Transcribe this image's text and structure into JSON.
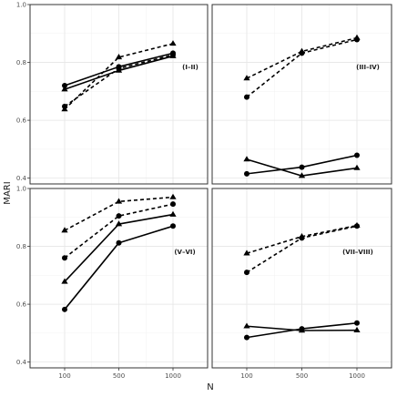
{
  "chart_data": {
    "type": "line",
    "xlabel": "N",
    "ylabel": "MARI",
    "x": [
      "100",
      "500",
      "1000"
    ],
    "ylim": [
      0.38,
      1.0
    ],
    "yticks": [
      "0.4",
      "0.6",
      "0.8",
      "1.0"
    ],
    "grid": true,
    "legend": "none",
    "panels": [
      {
        "label": "(I–II)",
        "series": [
          {
            "marker": "triangle",
            "linestyle": "dashed",
            "values": [
              0.638,
              0.818,
              0.865
            ]
          },
          {
            "marker": "circle",
            "linestyle": "dashed",
            "values": [
              0.648,
              0.779,
              0.826
            ]
          },
          {
            "marker": "circle",
            "linestyle": "solid",
            "values": [
              0.72,
              0.785,
              0.832
            ]
          },
          {
            "marker": "triangle",
            "linestyle": "solid",
            "values": [
              0.707,
              0.772,
              0.822
            ]
          }
        ]
      },
      {
        "label": "(III–IV)",
        "series": [
          {
            "marker": "triangle",
            "linestyle": "dashed",
            "values": [
              0.745,
              0.838,
              0.885
            ]
          },
          {
            "marker": "circle",
            "linestyle": "dashed",
            "values": [
              0.68,
              0.832,
              0.879
            ]
          },
          {
            "marker": "circle",
            "linestyle": "solid",
            "values": [
              0.415,
              0.438,
              0.479
            ]
          },
          {
            "marker": "triangle",
            "linestyle": "solid",
            "values": [
              0.465,
              0.408,
              0.435
            ]
          }
        ]
      },
      {
        "label": "(V–VI)",
        "series": [
          {
            "marker": "triangle",
            "linestyle": "dashed",
            "values": [
              0.855,
              0.955,
              0.97
            ]
          },
          {
            "marker": "circle",
            "linestyle": "dashed",
            "values": [
              0.76,
              0.905,
              0.946
            ]
          },
          {
            "marker": "triangle",
            "linestyle": "solid",
            "values": [
              0.678,
              0.877,
              0.91
            ]
          },
          {
            "marker": "circle",
            "linestyle": "solid",
            "values": [
              0.582,
              0.812,
              0.87
            ]
          }
        ]
      },
      {
        "label": "(VII–VIII)",
        "series": [
          {
            "marker": "triangle",
            "linestyle": "dashed",
            "values": [
              0.776,
              0.834,
              0.872
            ]
          },
          {
            "marker": "circle",
            "linestyle": "dashed",
            "values": [
              0.71,
              0.829,
              0.87
            ]
          },
          {
            "marker": "triangle",
            "linestyle": "solid",
            "values": [
              0.524,
              0.509,
              0.51
            ]
          },
          {
            "marker": "circle",
            "linestyle": "solid",
            "values": [
              0.485,
              0.515,
              0.535
            ]
          }
        ]
      }
    ]
  }
}
